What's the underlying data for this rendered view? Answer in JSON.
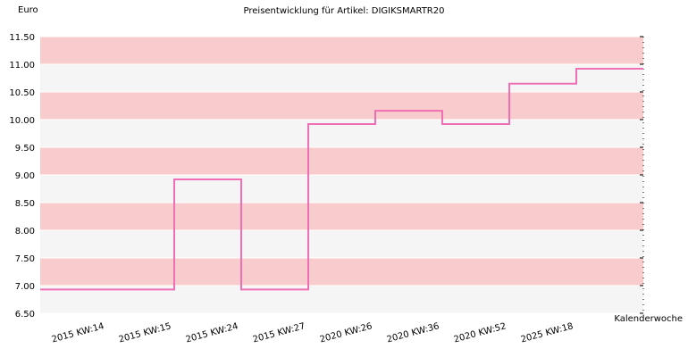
{
  "chart_data": {
    "type": "step",
    "title": "Preisentwicklung für Artikel: DIGIKSMARTR20",
    "y_label": "Euro",
    "x_label": "Kalenderwoche",
    "categories": [
      "2015 KW:14",
      "2015 KW:15",
      "2015 KW:24",
      "2015 KW:27",
      "2020 KW:26",
      "2020 KW:36",
      "2020 KW:52",
      "2025 KW:18"
    ],
    "values": [
      6.93,
      8.92,
      6.93,
      9.92,
      10.16,
      9.92,
      10.65,
      10.92
    ],
    "color": "#f06eb4",
    "ylim": [
      6.5,
      11.5
    ],
    "yticks": [
      {
        "value": 6.5,
        "label": "6.50"
      },
      {
        "value": 7,
        "label": "7.00"
      },
      {
        "value": 7.5,
        "label": "7.50"
      },
      {
        "value": 8,
        "label": "8.00"
      },
      {
        "value": 8.5,
        "label": "8.50"
      },
      {
        "value": 9,
        "label": "9.00"
      },
      {
        "value": 9.5,
        "label": "9.50"
      },
      {
        "value": 10,
        "label": "10.00"
      },
      {
        "value": 10.5,
        "label": "10.50"
      },
      {
        "value": 11,
        "label": "11.00"
      },
      {
        "value": 11.5,
        "label": "11.50"
      }
    ],
    "band_colors": [
      "#f5f5f5",
      "#f8cccc"
    ]
  }
}
